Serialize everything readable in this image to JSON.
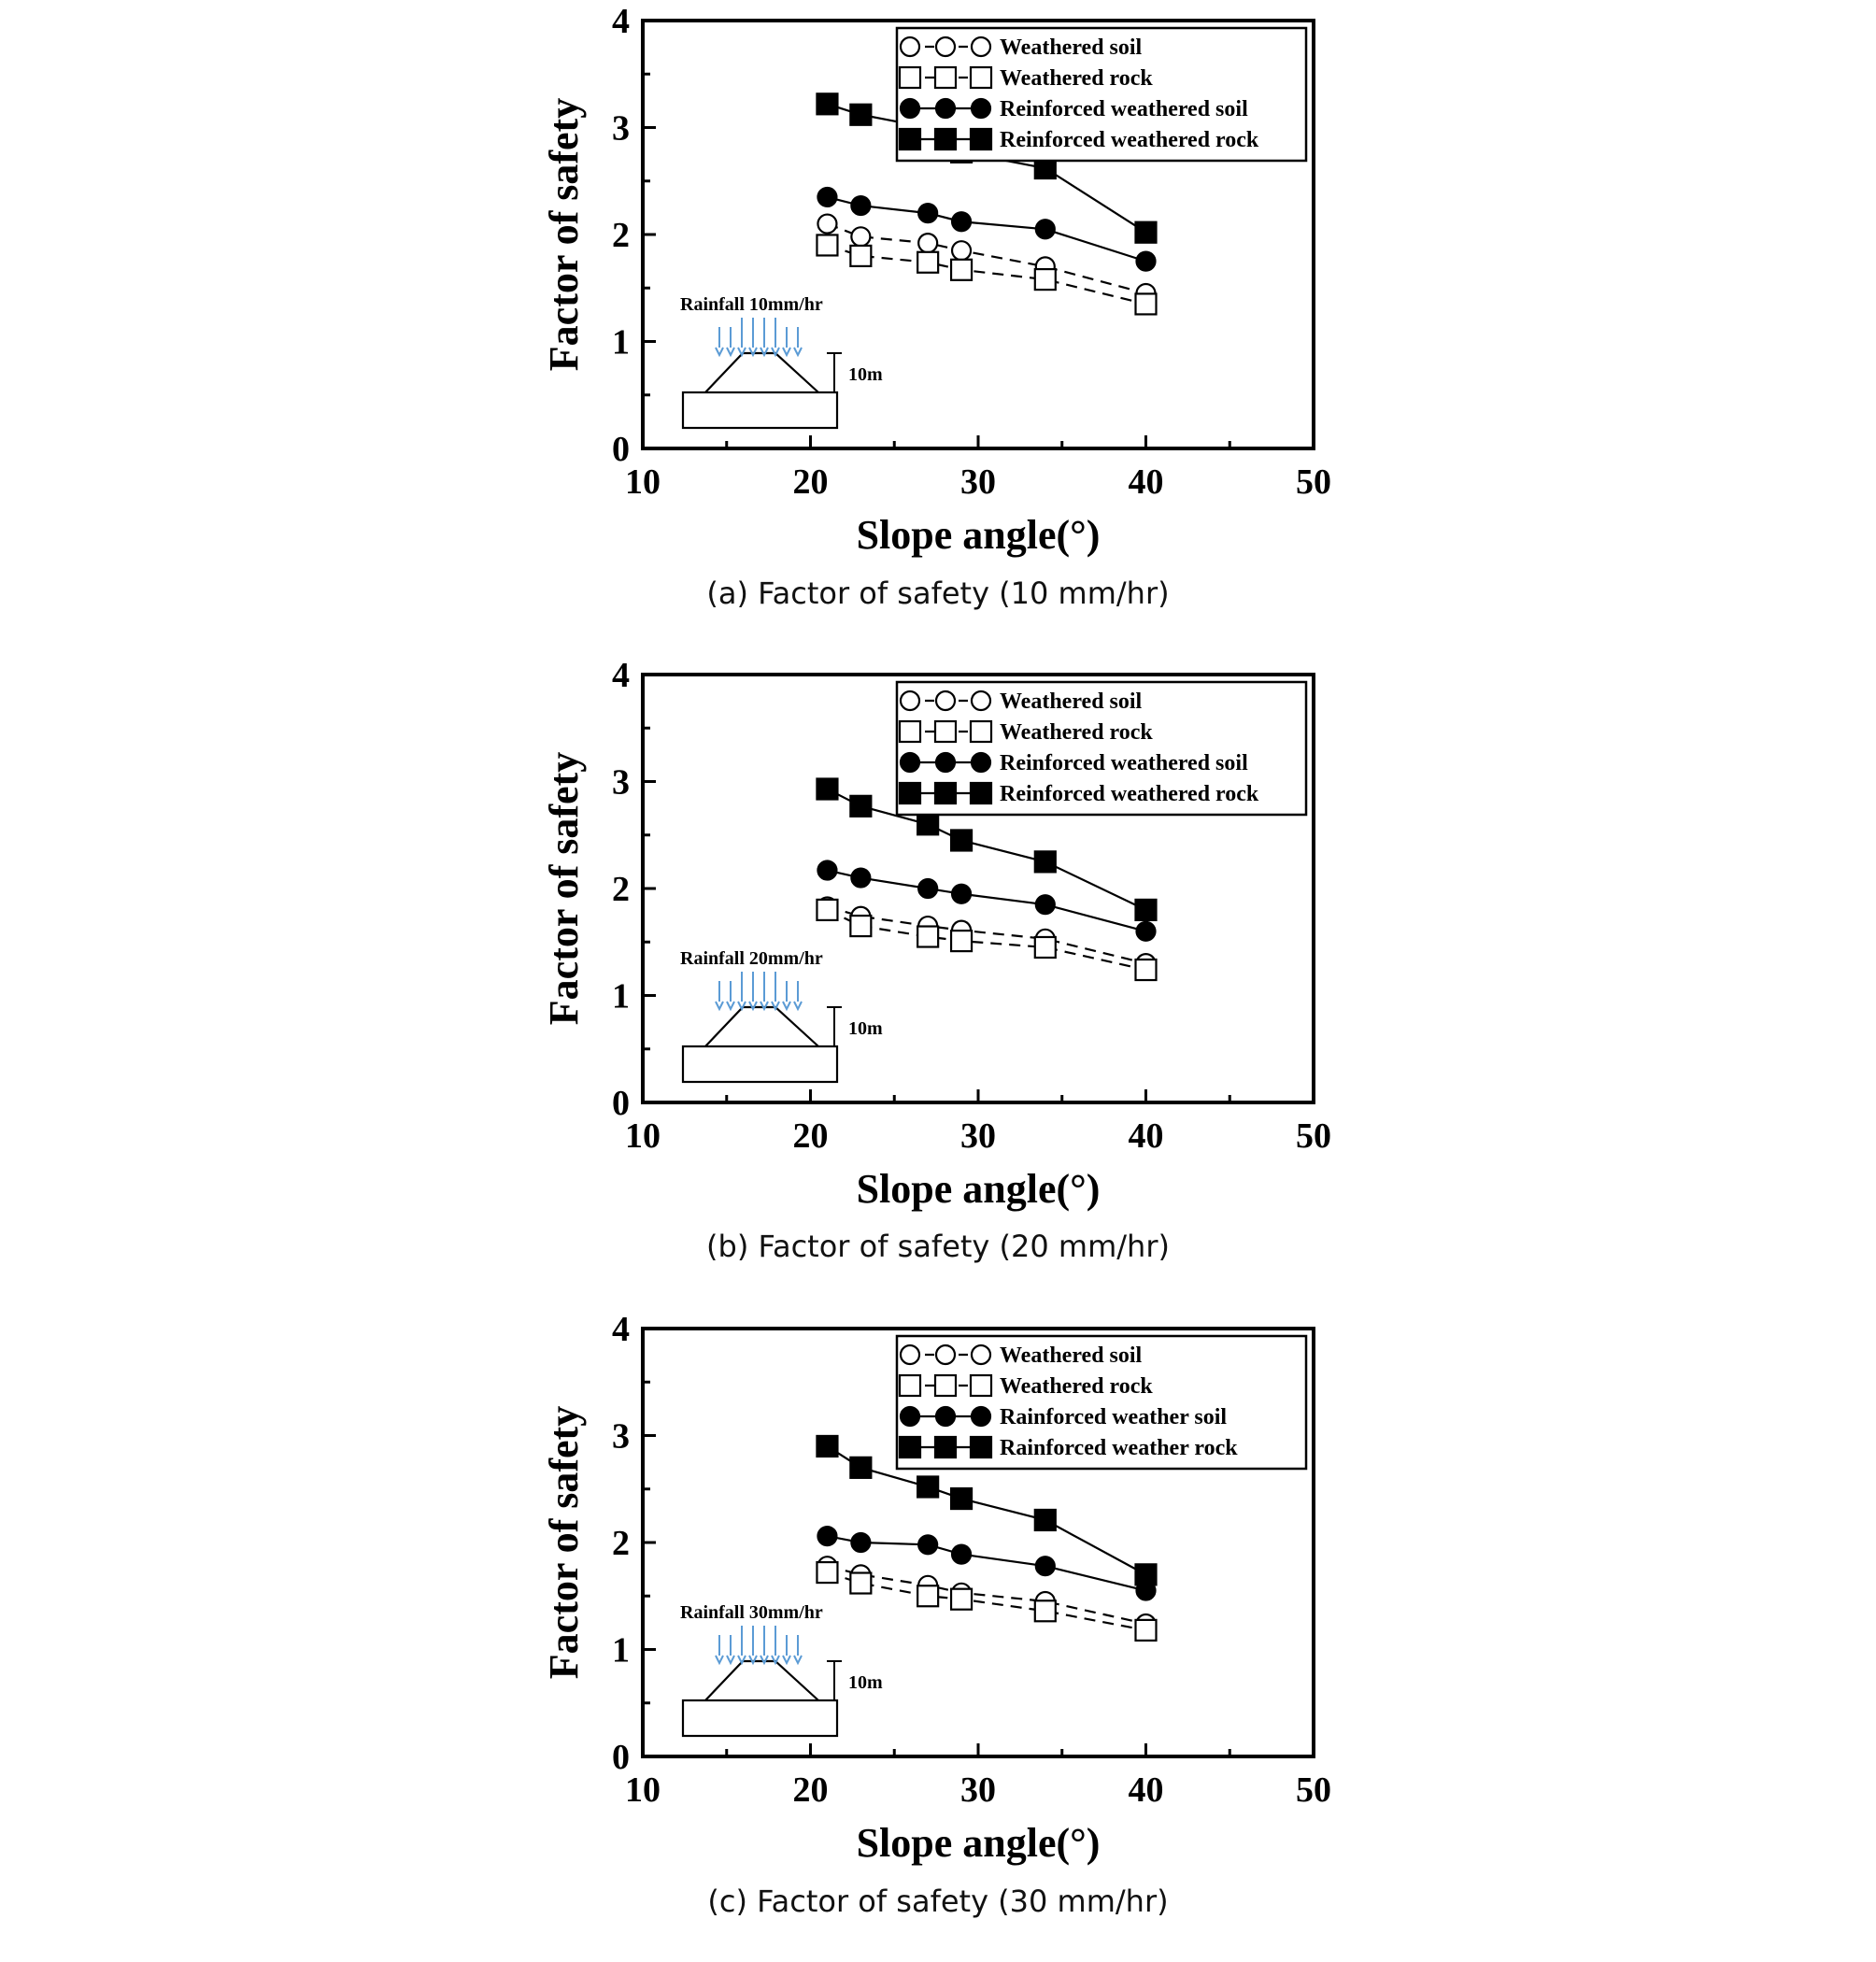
{
  "chart_data": [
    {
      "type": "line",
      "caption": "(a) Factor of safety (10 mm/hr)",
      "xlabel": "Slope angle(°)",
      "ylabel": "Factor of safety",
      "xlim": [
        10,
        50
      ],
      "ylim": [
        0,
        4
      ],
      "xticks": [
        "10",
        "20",
        "30",
        "40",
        "50"
      ],
      "yticks": [
        "0",
        "1",
        "2",
        "3",
        "4"
      ],
      "legend_position": "top-right",
      "inset": {
        "rainfall_label": "Rainfall 10mm/hr",
        "height_label": "10m"
      },
      "series": [
        {
          "name": "Weathered soil",
          "marker": "open-circle",
          "line": "dashed",
          "x": [
            21,
            23,
            27,
            29,
            34,
            40
          ],
          "y": [
            2.1,
            1.98,
            1.92,
            1.85,
            1.7,
            1.45
          ]
        },
        {
          "name": "Weathered rock",
          "marker": "open-square",
          "line": "dashed",
          "x": [
            21,
            23,
            27,
            29,
            34,
            40
          ],
          "y": [
            1.9,
            1.8,
            1.74,
            1.67,
            1.58,
            1.35
          ]
        },
        {
          "name": "Reinforced weathered soil",
          "marker": "filled-circle",
          "line": "solid",
          "x": [
            21,
            23,
            27,
            29,
            34,
            40
          ],
          "y": [
            2.35,
            2.27,
            2.2,
            2.12,
            2.05,
            1.75
          ]
        },
        {
          "name": "Reinforced weathered rock",
          "marker": "filled-square",
          "line": "solid",
          "x": [
            21,
            23,
            27,
            29,
            34,
            40
          ],
          "y": [
            3.22,
            3.12,
            3.0,
            2.77,
            2.62,
            2.02
          ]
        }
      ]
    },
    {
      "type": "line",
      "caption": "(b) Factor of safety (20 mm/hr)",
      "xlabel": "Slope angle(°)",
      "ylabel": "Factor of safety",
      "xlim": [
        10,
        50
      ],
      "ylim": [
        0,
        4
      ],
      "xticks": [
        "10",
        "20",
        "30",
        "40",
        "50"
      ],
      "yticks": [
        "0",
        "1",
        "2",
        "3",
        "4"
      ],
      "legend_position": "top-right",
      "inset": {
        "rainfall_label": "Rainfall 20mm/hr",
        "height_label": "10m"
      },
      "series": [
        {
          "name": "Weathered soil",
          "marker": "open-circle",
          "line": "dashed",
          "x": [
            21,
            23,
            27,
            29,
            34,
            40
          ],
          "y": [
            1.83,
            1.74,
            1.65,
            1.61,
            1.53,
            1.3
          ]
        },
        {
          "name": "Weathered rock",
          "marker": "open-square",
          "line": "dashed",
          "x": [
            21,
            23,
            27,
            29,
            34,
            40
          ],
          "y": [
            1.8,
            1.65,
            1.55,
            1.51,
            1.45,
            1.24
          ]
        },
        {
          "name": "Reinforced weathered soil",
          "marker": "filled-circle",
          "line": "solid",
          "x": [
            21,
            23,
            27,
            29,
            34,
            40
          ],
          "y": [
            2.17,
            2.1,
            2.0,
            1.95,
            1.85,
            1.6
          ]
        },
        {
          "name": "Reinforced weathered rock",
          "marker": "filled-square",
          "line": "solid",
          "x": [
            21,
            23,
            27,
            29,
            34,
            40
          ],
          "y": [
            2.93,
            2.77,
            2.6,
            2.45,
            2.25,
            1.8
          ]
        }
      ]
    },
    {
      "type": "line",
      "caption": "(c) Factor of safety (30 mm/hr)",
      "xlabel": "Slope angle(°)",
      "ylabel": "Factor of safety",
      "xlim": [
        10,
        50
      ],
      "ylim": [
        0,
        4
      ],
      "xticks": [
        "10",
        "20",
        "30",
        "40",
        "50"
      ],
      "yticks": [
        "0",
        "1",
        "2",
        "3",
        "4"
      ],
      "legend_position": "top-right",
      "inset": {
        "rainfall_label": "Rainfall 30mm/hr",
        "height_label": "10m"
      },
      "series": [
        {
          "name": "Weathered soil",
          "marker": "open-circle",
          "line": "dashed",
          "x": [
            21,
            23,
            27,
            29,
            34,
            40
          ],
          "y": [
            1.78,
            1.7,
            1.6,
            1.53,
            1.45,
            1.24
          ]
        },
        {
          "name": "Weathered rock",
          "marker": "open-square",
          "line": "dashed",
          "x": [
            21,
            23,
            27,
            29,
            34,
            40
          ],
          "y": [
            1.72,
            1.62,
            1.5,
            1.47,
            1.36,
            1.18
          ]
        },
        {
          "name": "Rainforced weather soil",
          "marker": "filled-circle",
          "line": "solid",
          "x": [
            21,
            23,
            27,
            29,
            34,
            40
          ],
          "y": [
            2.06,
            2.0,
            1.98,
            1.89,
            1.78,
            1.55
          ]
        },
        {
          "name": "Rainforced weather rock",
          "marker": "filled-square",
          "line": "solid",
          "x": [
            21,
            23,
            27,
            29,
            34,
            40
          ],
          "y": [
            2.9,
            2.7,
            2.52,
            2.41,
            2.21,
            1.7
          ]
        }
      ]
    }
  ]
}
